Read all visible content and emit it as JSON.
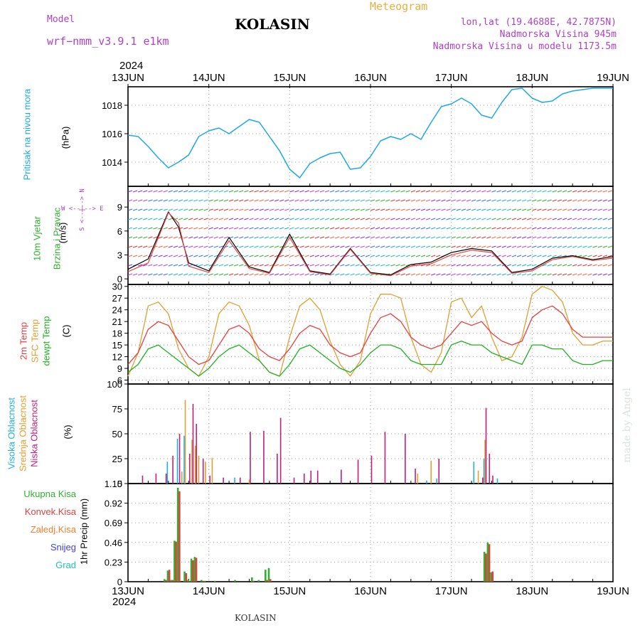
{
  "header": {
    "model_label": "Model",
    "model_name": "wrf−nmm_v3.9.1  e1km",
    "title": "KOLASIN",
    "meteogram": "Meteogram",
    "lonlat": "lon,lat (19.4688E, 42.7875N)",
    "elevation": "Nadmorska Visina 945m",
    "model_elevation": "Nadmorska Visina u modelu 1173.5m",
    "year_top": "2024",
    "year_bottom": "2024"
  },
  "footer": {
    "station": "KOLASIN",
    "signature": "made by Angel"
  },
  "colors": {
    "pressure": "#1ea8e6",
    "temp2m": "#e84040",
    "sfc": "#e0a030",
    "dew": "#20b020",
    "high_cloud": "#20b0e0",
    "mid_cloud": "#e0a030",
    "low_cloud": "#c0207a",
    "total_precip": "#30b030",
    "conv_precip": "#e04040",
    "frozen": "#f08030",
    "snow": "#4040e0",
    "hail": "#20c0c0"
  },
  "days": [
    "13JUN",
    "14JUN",
    "15JUN",
    "16JUN",
    "17JUN",
    "18JUN",
    "19JUN"
  ],
  "labels": {
    "pressure": [
      "Pritisak na nivou mora",
      "(hPa)"
    ],
    "wind": [
      "10m Vjetar",
      "Brzina i Pravac",
      "(m/s)"
    ],
    "compass": "W <--|--> E",
    "compass_ns": "S <--|--> N",
    "temp": [
      "2m Temp",
      "SFC Temp",
      "dewpt Temp",
      "(C)"
    ],
    "cloud": [
      "Visoka Oblacnost",
      "Srednja Oblacnost",
      "Niska Oblacnost",
      "(%)"
    ],
    "precip_axis": "1hr Precip (mm)",
    "precip_legend": [
      "Ukupna Kisa",
      "Konvek.Kisa",
      "Zaledj.Kisa",
      "Snijeg",
      "Grad"
    ]
  },
  "chart_data": [
    {
      "type": "line",
      "title": "Pritisak na nivou mora",
      "ylabel": "(hPa)",
      "ylim": [
        1012.3,
        1019.3
      ],
      "yticks": [
        1014,
        1016,
        1018
      ],
      "grid": true,
      "x_hours": [
        0,
        3,
        6,
        9,
        12,
        15,
        18,
        21,
        24,
        27,
        30,
        33,
        36,
        39,
        42,
        45,
        48,
        51,
        54,
        57,
        60,
        63,
        66,
        69,
        72,
        75,
        78,
        81,
        84,
        87,
        90,
        93,
        96,
        99,
        102,
        105,
        108,
        111,
        114,
        117,
        120,
        123,
        126,
        129,
        132,
        135,
        138,
        141,
        144
      ],
      "series": [
        {
          "name": "Pritisak na nivou mora",
          "values": [
            1015.9,
            1015.8,
            1015.1,
            1014.3,
            1013.6,
            1014.0,
            1014.5,
            1015.8,
            1016.2,
            1016.4,
            1016.0,
            1016.5,
            1017.0,
            1016.8,
            1015.8,
            1014.8,
            1013.5,
            1012.9,
            1013.9,
            1014.3,
            1014.6,
            1014.7,
            1013.5,
            1013.6,
            1014.4,
            1015.5,
            1015.8,
            1015.6,
            1016.0,
            1015.6,
            1016.8,
            1017.9,
            1018.1,
            1018.5,
            1018.1,
            1017.3,
            1017.1,
            1018.2,
            1019.1,
            1019.2,
            1018.5,
            1018.2,
            1018.3,
            1018.8,
            1019.0,
            1019.1,
            1019.2,
            1019.2,
            1019.2
          ]
        }
      ]
    },
    {
      "type": "line",
      "title": "10m Vjetar Brzina i Pravac",
      "ylabel": "(m/s)",
      "ylim": [
        -0.7,
        11.6
      ],
      "yticks": [
        0,
        3,
        6,
        9
      ],
      "x_hours": [
        0,
        6,
        12,
        15,
        18,
        24,
        30,
        36,
        42,
        48,
        54,
        60,
        66,
        72,
        78,
        84,
        90,
        96,
        102,
        108,
        114,
        120,
        126,
        132,
        138,
        144
      ],
      "series": [
        {
          "name": "speed",
          "values": [
            1.2,
            2.5,
            8.4,
            6.5,
            2.0,
            1.0,
            5.2,
            1.5,
            0.8,
            5.6,
            1.0,
            0.6,
            3.8,
            0.8,
            0.5,
            1.8,
            2.1,
            3.3,
            3.8,
            3.5,
            0.8,
            1.2,
            2.6,
            2.9,
            2.4,
            2.8
          ]
        },
        {
          "name": "gust",
          "values": [
            0.9,
            2.0,
            8.3,
            7.0,
            1.6,
            0.8,
            4.8,
            1.3,
            0.7,
            5.2,
            0.9,
            0.5,
            3.7,
            0.7,
            0.4,
            1.6,
            1.9,
            3.0,
            3.6,
            3.3,
            0.7,
            1.0,
            2.4,
            2.8,
            2.3,
            2.6
          ]
        }
      ]
    },
    {
      "type": "line",
      "title": "2m Temp / SFC Temp / dewpt Temp",
      "ylabel": "(C)",
      "ylim": [
        5,
        30.5
      ],
      "yticks": [
        6,
        9,
        12,
        15,
        18,
        21,
        24,
        27,
        30
      ],
      "x_hours": [
        0,
        3,
        6,
        9,
        12,
        15,
        18,
        21,
        24,
        27,
        30,
        33,
        36,
        39,
        42,
        45,
        48,
        51,
        54,
        57,
        60,
        63,
        66,
        69,
        72,
        75,
        78,
        81,
        84,
        87,
        90,
        93,
        96,
        99,
        102,
        105,
        108,
        111,
        114,
        117,
        120,
        123,
        126,
        129,
        132,
        135,
        138,
        141,
        144
      ],
      "series": [
        {
          "name": "2m Temp",
          "values": [
            10,
            13,
            19,
            21,
            20,
            16,
            12,
            10,
            11,
            15,
            19,
            20,
            18,
            14,
            12,
            11,
            14,
            18,
            20,
            19,
            15,
            13,
            12,
            13,
            18,
            22,
            23,
            21,
            17,
            15,
            14,
            15,
            18,
            21,
            20,
            21,
            18,
            16,
            15,
            16,
            22,
            24,
            25,
            23,
            19,
            17,
            17,
            17,
            17
          ]
        },
        {
          "name": "SFC Temp",
          "values": [
            7,
            13,
            25,
            26,
            23,
            14,
            9,
            7,
            12,
            23,
            26,
            25,
            20,
            11,
            8,
            7,
            17,
            25,
            27,
            24,
            16,
            10,
            7,
            11,
            23,
            28,
            28,
            27,
            17,
            10,
            8,
            13,
            26,
            27,
            22,
            25,
            17,
            11,
            12,
            17,
            28,
            30,
            29,
            26,
            18,
            15,
            15,
            16,
            16
          ]
        },
        {
          "name": "dewpt Temp",
          "values": [
            8,
            10,
            14,
            15,
            13,
            11,
            9,
            7,
            9,
            12,
            14,
            15,
            13,
            11,
            8,
            7,
            10,
            14,
            15,
            13,
            11,
            9,
            8,
            10,
            13,
            15,
            15,
            14,
            11,
            10,
            10,
            10,
            15,
            16,
            15,
            15,
            13,
            12,
            11,
            10,
            15,
            15,
            14,
            14,
            11,
            10,
            10,
            11,
            11
          ]
        }
      ]
    },
    {
      "type": "bar",
      "title": "Oblacnost",
      "ylabel": "(%)",
      "ylim": [
        0,
        100
      ],
      "yticks": [
        0,
        25,
        50,
        75,
        100
      ],
      "series": [
        {
          "name": "Visoka Oblacnost",
          "x_hours": [
            12,
            15,
            17,
            32,
            89,
            92,
            103,
            106,
            110
          ],
          "values": [
            22,
            45,
            48,
            6,
            3,
            5,
            22,
            25,
            5
          ]
        },
        {
          "name": "Srednja Oblacnost",
          "x_hours": [
            16,
            17,
            19,
            20,
            21,
            23,
            25,
            36,
            86,
            90,
            104,
            106
          ],
          "values": [
            12,
            84,
            44,
            38,
            28,
            22,
            26,
            4,
            10,
            23,
            13,
            44
          ]
        },
        {
          "name": "Niska Oblacnost",
          "x_hours": [
            4,
            8,
            11,
            13,
            15,
            18,
            19,
            20,
            22,
            24,
            28,
            33,
            36,
            40,
            44,
            45,
            49,
            52,
            54,
            56,
            63,
            68,
            72,
            76,
            82,
            85,
            92,
            105,
            106,
            107,
            108
          ],
          "values": [
            8,
            10,
            10,
            28,
            50,
            30,
            80,
            60,
            25,
            8,
            6,
            6,
            52,
            53,
            30,
            66,
            6,
            10,
            13,
            13,
            14,
            24,
            28,
            52,
            50,
            15,
            25,
            6,
            76,
            30,
            8
          ]
        }
      ]
    },
    {
      "type": "bar",
      "title": "1hr Precip",
      "ylabel": "1hr Precip (mm)",
      "ylim": [
        0,
        1.15
      ],
      "yticks": [
        0,
        0.23,
        0.46,
        0.69,
        0.92,
        1.15
      ],
      "x_hours": [
        11,
        12,
        13,
        14,
        15,
        17,
        18,
        19,
        20,
        22,
        23,
        26,
        32,
        37,
        39,
        41,
        42,
        106,
        107,
        108
      ],
      "series": [
        {
          "name": "Ukupna Kisa",
          "values": [
            0.03,
            0.13,
            0.02,
            0.48,
            1.1,
            0.12,
            0.02,
            0.27,
            0.29,
            0.02,
            0.01,
            0.01,
            0.02,
            0.05,
            0.02,
            0.14,
            0.16,
            0.35,
            0.46,
            0.11
          ]
        },
        {
          "name": "Konvek.Kisa",
          "values": [
            0.02,
            0.14,
            0.02,
            0.47,
            1.06,
            0.1,
            0.01,
            0.25,
            0.28,
            0.01,
            0.0,
            0.0,
            0.0,
            0.01,
            0.0,
            0.02,
            0.03,
            0.33,
            0.44,
            0.12
          ]
        },
        {
          "name": "Zaledj.Kisa",
          "values": [
            0,
            0,
            0,
            0,
            0,
            0,
            0,
            0,
            0,
            0,
            0,
            0,
            0,
            0,
            0,
            0,
            0,
            0,
            0,
            0
          ]
        },
        {
          "name": "Snijeg",
          "values": [
            0,
            0,
            0,
            0,
            0,
            0,
            0,
            0,
            0,
            0,
            0,
            0,
            0,
            0,
            0,
            0,
            0,
            0,
            0,
            0
          ]
        },
        {
          "name": "Grad",
          "values": [
            0,
            0,
            0,
            0,
            0,
            0,
            0,
            0,
            0,
            0,
            0,
            0,
            0,
            0,
            0,
            0,
            0,
            0,
            0,
            0
          ]
        }
      ]
    }
  ]
}
